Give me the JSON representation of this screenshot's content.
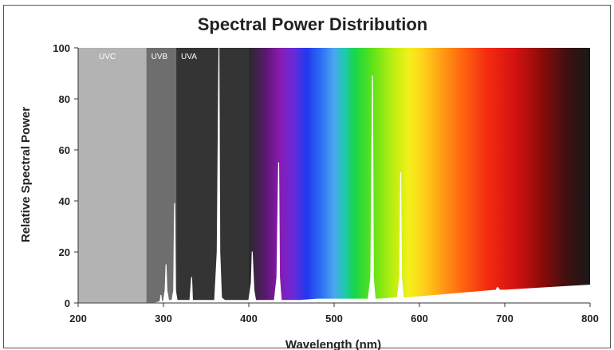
{
  "chart_data": {
    "type": "line",
    "title": "Spectral Power Distribution",
    "xlabel": "Wavelength (nm)",
    "ylabel": "Relative Spectral Power",
    "xlim": [
      200,
      800
    ],
    "ylim": [
      0,
      100
    ],
    "x_ticks": [
      200,
      300,
      400,
      500,
      600,
      700,
      800
    ],
    "y_ticks": [
      0,
      20,
      40,
      60,
      80,
      100
    ],
    "grid": false,
    "legend": "none",
    "regions": [
      {
        "label": "UVC",
        "start": 200,
        "end": 280,
        "color": "#b3b3b3"
      },
      {
        "label": "UVB",
        "start": 280,
        "end": 315,
        "color": "#6e6e6e"
      },
      {
        "label": "UVA",
        "start": 315,
        "end": 400,
        "color": "#343434"
      }
    ],
    "series": [
      {
        "color": "#ffffff",
        "x": [
          200,
          290,
          296,
          297,
          298,
          300,
          302,
          303,
          304,
          306,
          310,
          312,
          313,
          314,
          316,
          320,
          331,
          333,
          334,
          336,
          340,
          360,
          363,
          365,
          366,
          368,
          372,
          380,
          400,
          403,
          404,
          406,
          408,
          410,
          430,
          433,
          435,
          436,
          438,
          442,
          460,
          480,
          540,
          543,
          545,
          546,
          548,
          552,
          574,
          577,
          578,
          579,
          581,
          585,
          690,
          691,
          692,
          694,
          700,
          800
        ],
        "y": [
          0,
          0,
          0.5,
          3,
          0.5,
          0.5,
          5,
          15,
          5,
          1,
          1,
          5,
          39,
          5,
          1,
          1,
          1,
          10,
          1,
          1,
          1,
          1,
          20,
          100,
          20,
          2,
          1,
          1,
          1,
          8,
          20,
          5,
          1,
          1,
          1,
          10,
          55,
          10,
          1,
          1,
          1,
          1.5,
          1.5,
          10,
          89,
          10,
          1.5,
          1.5,
          2,
          10,
          51,
          10,
          2,
          2,
          5,
          6,
          6,
          5,
          5,
          7
        ]
      }
    ]
  }
}
